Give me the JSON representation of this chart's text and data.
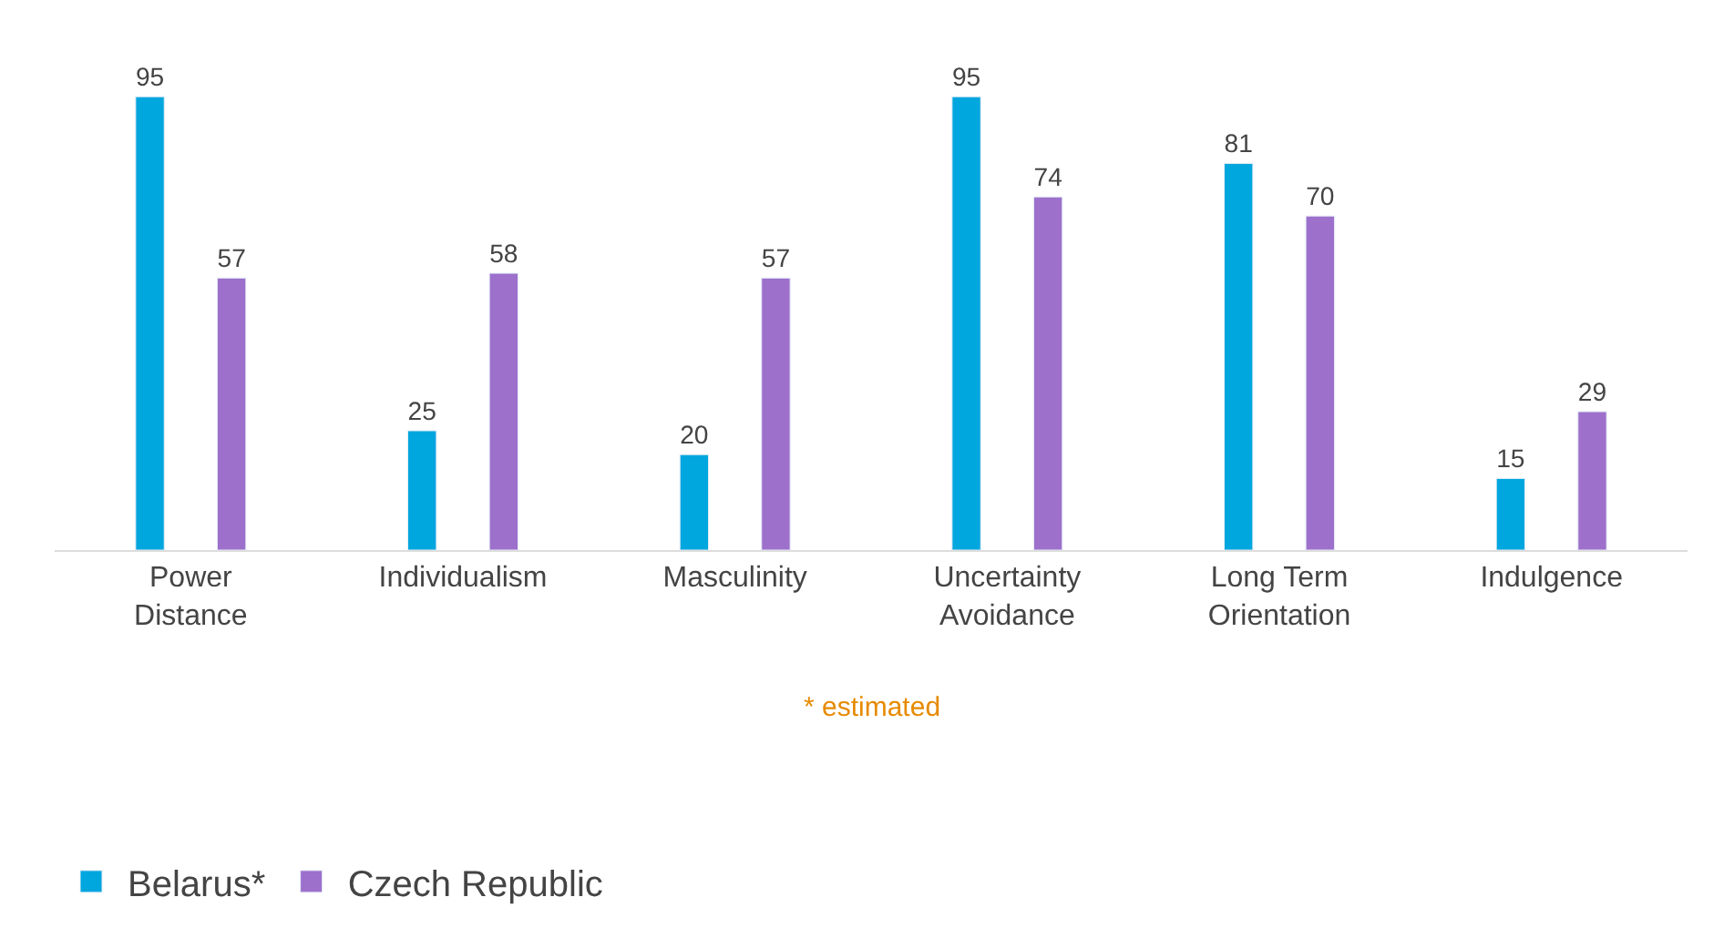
{
  "chart_data": {
    "type": "bar",
    "categories": [
      "Power\nDistance",
      "Individualism",
      "Masculinity",
      "Uncertainty\nAvoidance",
      "Long Term\nOrientation",
      "Indulgence"
    ],
    "series": [
      {
        "name": "Belarus*",
        "color": "#00a6de",
        "values": [
          95,
          25,
          20,
          95,
          81,
          15
        ]
      },
      {
        "name": "Czech Republic",
        "color": "#9d70cc",
        "values": [
          57,
          58,
          57,
          74,
          70,
          29
        ]
      }
    ],
    "data_labels": true,
    "legend": "bottom left",
    "annotations": [
      "* estimated"
    ]
  }
}
